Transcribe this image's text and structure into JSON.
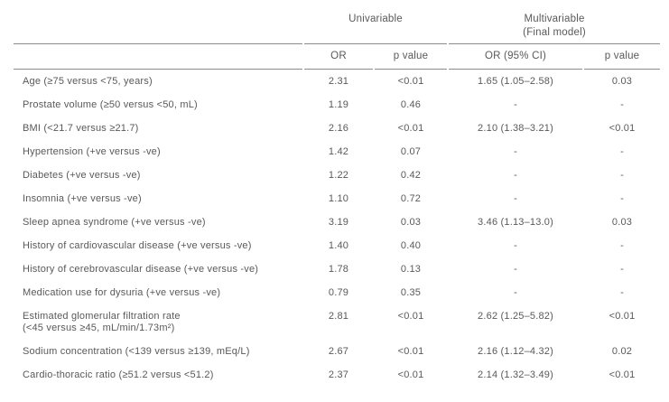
{
  "colors": {
    "text": "#58595b",
    "rule": "#8b8b8b",
    "background": "#ffffff"
  },
  "table": {
    "groups": {
      "univariable": {
        "label": "Univariable"
      },
      "multivariable": {
        "label": "Multivariable",
        "sublabel": "(Final model)"
      }
    },
    "columns": {
      "or": "OR",
      "p1": "p value",
      "orci": "OR (95% CI)",
      "p2": "p value"
    },
    "rows": [
      {
        "label": "Age (≥75 versus <75, years)",
        "or": "2.31",
        "p1": "<0.01",
        "orci": "1.65 (1.05–2.58)",
        "p2": "0.03"
      },
      {
        "label": "Prostate volume (≥50 versus <50, mL)",
        "or": "1.19",
        "p1": "0.46",
        "orci": "-",
        "p2": "-"
      },
      {
        "label": "BMI (<21.7 versus ≥21.7)",
        "or": "2.16",
        "p1": "<0.01",
        "orci": "2.10 (1.38–3.21)",
        "p2": "<0.01"
      },
      {
        "label": "Hypertension (+ve versus -ve)",
        "or": "1.42",
        "p1": "0.07",
        "orci": "-",
        "p2": "-"
      },
      {
        "label": "Diabetes (+ve versus -ve)",
        "or": "1.22",
        "p1": "0.42",
        "orci": "-",
        "p2": "-"
      },
      {
        "label": "Insomnia (+ve versus -ve)",
        "or": "1.10",
        "p1": "0.72",
        "orci": "-",
        "p2": "-"
      },
      {
        "label": "Sleep apnea syndrome (+ve versus -ve)",
        "or": "3.19",
        "p1": "0.03",
        "orci": "3.46 (1.13–13.0)",
        "p2": "0.03"
      },
      {
        "label": "History of cardiovascular disease (+ve versus -ve)",
        "or": "1.40",
        "p1": "0.40",
        "orci": "-",
        "p2": "-"
      },
      {
        "label": "History of cerebrovascular disease (+ve versus -ve)",
        "or": "1.78",
        "p1": "0.13",
        "orci": "-",
        "p2": "-"
      },
      {
        "label": "Medication use for dysuria (+ve versus -ve)",
        "or": "0.79",
        "p1": "0.35",
        "orci": "-",
        "p2": "-"
      },
      {
        "label": "Estimated glomerular filtration rate",
        "label2": "(<45 versus ≥45, mL/min/1.73m²)",
        "or": "2.81",
        "p1": "<0.01",
        "orci": "2.62 (1.25–5.82)",
        "p2": "<0.01"
      },
      {
        "label": "Sodium concentration (<139 versus ≥139, mEq/L)",
        "or": "2.67",
        "p1": "<0.01",
        "orci": "2.16 (1.12–4.32)",
        "p2": "0.02"
      },
      {
        "label": "Cardio-thoracic ratio (≥51.2 versus <51.2)",
        "or": "2.37",
        "p1": "<0.01",
        "orci": "2.14 (1.32–3.49)",
        "p2": "<0.01"
      }
    ]
  }
}
